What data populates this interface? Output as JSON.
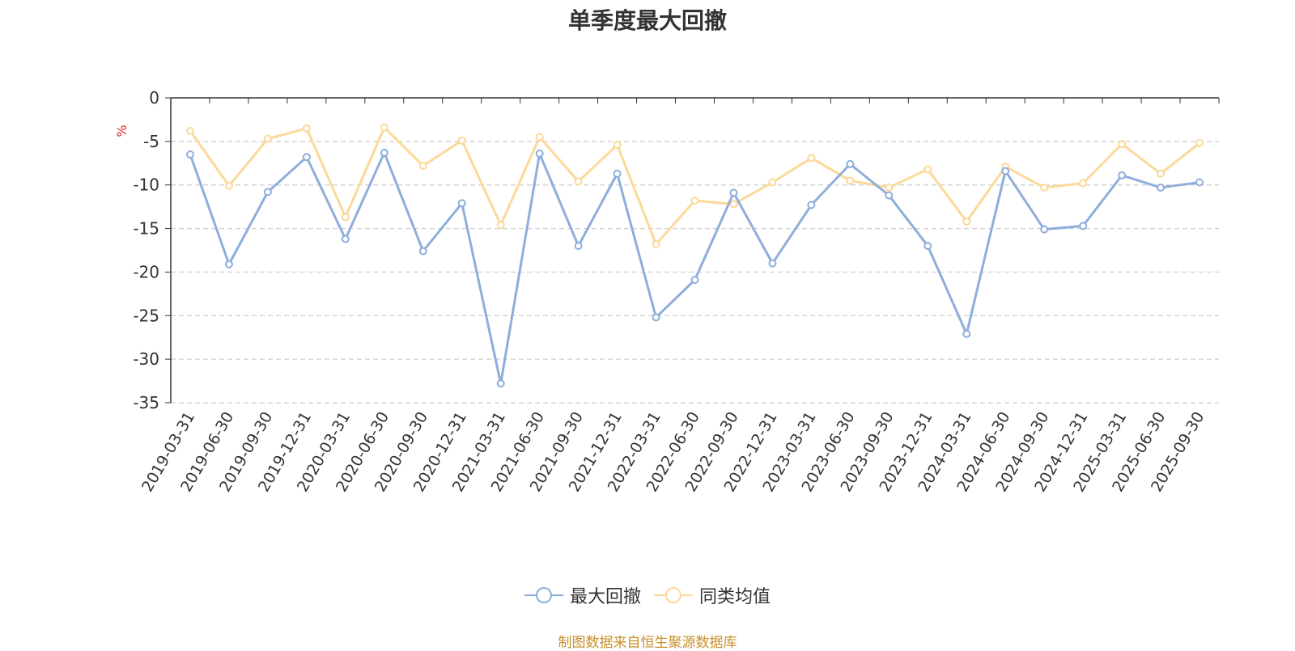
{
  "chart_data": {
    "type": "line",
    "title": "单季度最大回撤",
    "ylabel": "%",
    "ylim": [
      -35,
      0
    ],
    "yticks": [
      0,
      -5,
      -10,
      -15,
      -20,
      -25,
      -30,
      -35
    ],
    "grid": true,
    "legend_position": "bottom",
    "categories": [
      "2019-03-31",
      "2019-06-30",
      "2019-09-30",
      "2019-12-31",
      "2020-03-31",
      "2020-06-30",
      "2020-09-30",
      "2020-12-31",
      "2021-03-31",
      "2021-06-30",
      "2021-09-30",
      "2021-12-31",
      "2022-03-31",
      "2022-06-30",
      "2022-09-30",
      "2022-12-31",
      "2023-03-31",
      "2023-06-30",
      "2023-09-30",
      "2023-12-31",
      "2024-03-31",
      "2024-06-30",
      "2024-09-30",
      "2024-12-31",
      "2025-03-31",
      "2025-06-30",
      "2025-09-30"
    ],
    "series": [
      {
        "name": "最大回撤",
        "color": "#8eaedb",
        "values": [
          -6.5,
          -19.1,
          -10.8,
          -6.8,
          -16.2,
          -6.3,
          -17.6,
          -12.1,
          -32.8,
          -6.4,
          -17.0,
          -8.7,
          -25.2,
          -20.9,
          -10.9,
          -19.0,
          -12.3,
          -7.6,
          -11.2,
          -17.0,
          -27.1,
          -8.4,
          -15.1,
          -14.7,
          -8.9,
          -10.3,
          -9.7
        ]
      },
      {
        "name": "同类均值",
        "color": "#fbd999",
        "values": [
          -3.8,
          -10.1,
          -4.7,
          -3.5,
          -13.7,
          -3.4,
          -7.8,
          -4.9,
          -14.6,
          -4.5,
          -9.6,
          -5.4,
          -16.8,
          -11.8,
          -12.2,
          -9.7,
          -6.9,
          -9.5,
          -10.3,
          -8.2,
          -14.2,
          -7.9,
          -10.3,
          -9.8,
          -5.3,
          -8.7,
          -5.2
        ]
      }
    ]
  },
  "legend": {
    "items": [
      {
        "label": "最大回撤"
      },
      {
        "label": "同类均值"
      }
    ]
  },
  "footer": "制图数据来自恒生聚源数据库"
}
